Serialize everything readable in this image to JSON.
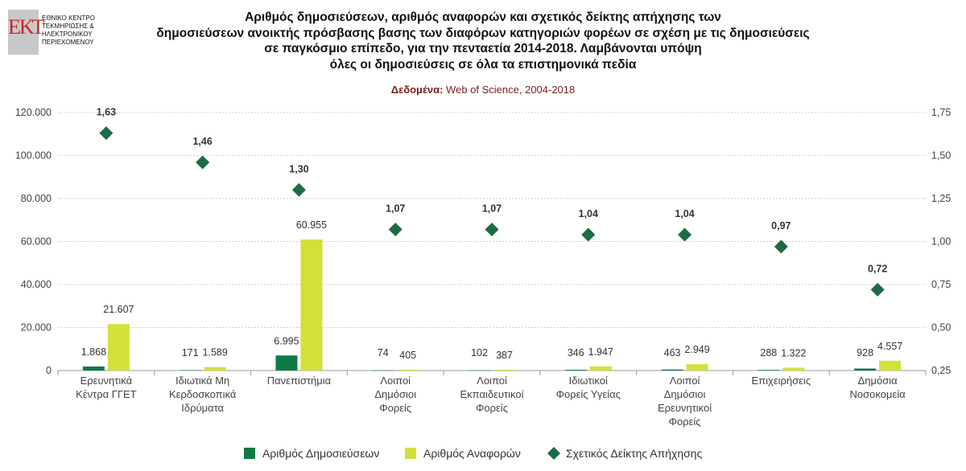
{
  "logo": {
    "mark": "ΕΚΤ",
    "lines": [
      "ΕΘΝΙΚΟ ΚΕΝΤΡΟ",
      "ΤΕΚΜΗΡΙΩΣΗΣ &",
      "ΗΛΕΚΤΡΟΝΙΚΟΥ",
      "ΠΕΡΙΕΧΟΜΕΝΟΥ"
    ]
  },
  "title_lines": [
    "Αριθμός δημοσιεύσεων, αριθμός αναφορών και σχετικός δείκτης απήχησης των",
    "δημοσιεύσεων ανοικτής πρόσβασης βασης των διαφόρων κατηγοριών φορέων σε σχέση με τις δημοσιεύσεις",
    "σε παγκόσμιο επίπεδο, για την πενταετία 2014-2018. Λαμβάνονται υπόψη",
    "όλες οι δημοσιεύσεις σε όλα τα επιστημονικά πεδία"
  ],
  "subtitle": {
    "label": "Δεδομένα:",
    "text": " Web of Science, 2004-2018"
  },
  "chart_data": {
    "type": "bar",
    "categories": [
      [
        "Ερευνητικά",
        "Κέντρα ΓΓΕΤ"
      ],
      [
        "Ιδιωτικά Μη",
        "Κερδοσκοπικά",
        "Ιδρύματα"
      ],
      [
        "Πανεπιστήμια"
      ],
      [
        "Λοιποί",
        "Δημόσιοι",
        "Φορείς"
      ],
      [
        "Λοιποί",
        "Εκπαιδευτικοί",
        "Φορείς"
      ],
      [
        "Ιδιωτικοί",
        "Φορείς Υγείας"
      ],
      [
        "Λοιποί",
        "Δημόσιοι",
        "Ερευνητικοί",
        "Φορείς"
      ],
      [
        "Επιχειρήσεις"
      ],
      [
        "Δημόσια",
        "Νοσοκομεία"
      ]
    ],
    "series": [
      {
        "name": "Αριθμός Δημοσιεύσεων",
        "color": "#0e7a45",
        "values": [
          1868,
          171,
          6995,
          74,
          102,
          346,
          463,
          288,
          928
        ],
        "labels": [
          "1.868",
          "171",
          "6.995",
          "74",
          "102",
          "346",
          "463",
          "288",
          "928"
        ]
      },
      {
        "name": "Αριθμός Αναφορών",
        "color": "#d3e03a",
        "values": [
          21607,
          1589,
          60955,
          405,
          387,
          1947,
          2949,
          1322,
          4557
        ],
        "labels": [
          "21.607",
          "1.589",
          "60.955",
          "405",
          "387",
          "1.947",
          "2.949",
          "1.322",
          "4.557"
        ]
      },
      {
        "name": "Σχετικός Δείκτης Απήχησης",
        "color": "#1d6b45",
        "marker": "diamond",
        "axis": "right",
        "values": [
          1.63,
          1.46,
          1.3,
          1.07,
          1.07,
          1.04,
          1.04,
          0.97,
          0.72
        ],
        "labels": [
          "1,63",
          "1,46",
          "1,30",
          "1,07",
          "1,07",
          "1,04",
          "1,04",
          "0,97",
          "0,72"
        ]
      }
    ],
    "ylim": [
      0,
      120000
    ],
    "y_ticks": [
      "0",
      "20.000",
      "40.000",
      "60.000",
      "80.000",
      "100.000",
      "120.000"
    ],
    "y2lim": [
      0.25,
      1.75
    ],
    "y2_ticks": [
      "0,25",
      "0,50",
      "0,75",
      "1,00",
      "1,25",
      "1,50",
      "1,75"
    ],
    "grid": true,
    "legend_position": "bottom"
  }
}
